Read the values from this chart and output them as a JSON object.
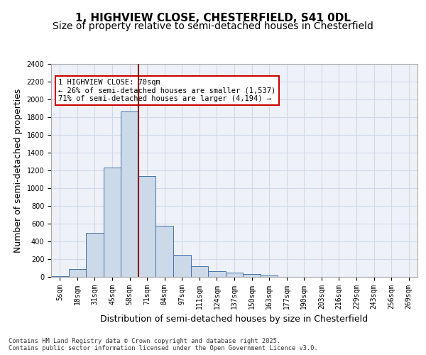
{
  "title_line1": "1, HIGHVIEW CLOSE, CHESTERFIELD, S41 0DL",
  "title_line2": "Size of property relative to semi-detached houses in Chesterfield",
  "xlabel": "Distribution of semi-detached houses by size in Chesterfield",
  "ylabel": "Number of semi-detached properties",
  "bin_labels": [
    "5sqm",
    "18sqm",
    "31sqm",
    "45sqm",
    "58sqm",
    "71sqm",
    "84sqm",
    "97sqm",
    "111sqm",
    "124sqm",
    "137sqm",
    "150sqm",
    "163sqm",
    "177sqm",
    "190sqm",
    "203sqm",
    "216sqm",
    "229sqm",
    "243sqm",
    "256sqm",
    "269sqm"
  ],
  "bar_values": [
    10,
    85,
    500,
    1235,
    1865,
    1140,
    575,
    245,
    120,
    65,
    45,
    30,
    20,
    0,
    0,
    0,
    0,
    0,
    0,
    0,
    0
  ],
  "bar_color": "#ccd9e8",
  "bar_edge_color": "#4472a8",
  "grid_color": "#d0d8e8",
  "background_color": "#eef2f8",
  "vline_x": 4.5,
  "vline_color": "#8b0000",
  "annotation_text": "1 HIGHVIEW CLOSE: 70sqm\n← 26% of semi-detached houses are smaller (1,537)\n71% of semi-detached houses are larger (4,194) →",
  "annotation_box_color": "#ffffff",
  "annotation_box_edge": "#cc0000",
  "ylim": [
    0,
    2400
  ],
  "yticks": [
    0,
    200,
    400,
    600,
    800,
    1000,
    1200,
    1400,
    1600,
    1800,
    2000,
    2200,
    2400
  ],
  "footer_text": "Contains HM Land Registry data © Crown copyright and database right 2025.\nContains public sector information licensed under the Open Government Licence v3.0.",
  "title_fontsize": 11,
  "subtitle_fontsize": 10,
  "tick_fontsize": 7,
  "ylabel_fontsize": 9,
  "xlabel_fontsize": 9
}
